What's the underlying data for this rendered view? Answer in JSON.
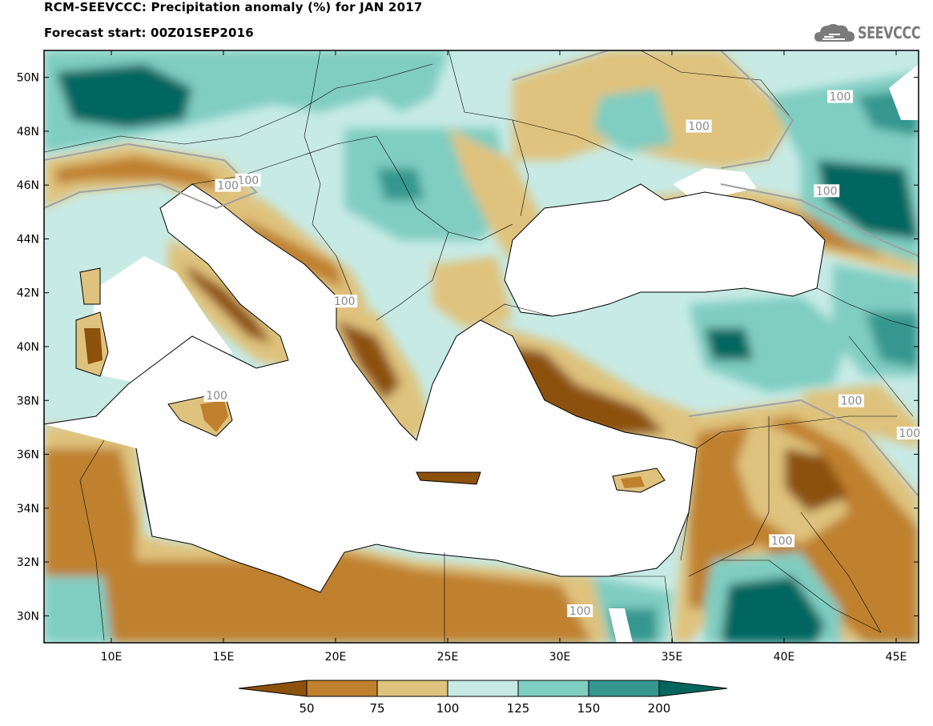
{
  "title_line1": "RCM-SEEVCCC: Precipitation anomaly (%) for JAN 2017",
  "title_line2": "Forecast start: 00Z01SEP2016",
  "logo": {
    "text": "SEEVCCC",
    "icon": "cloud-logo-icon"
  },
  "map": {
    "lon_range": [
      7,
      46
    ],
    "lat_range": [
      29,
      51
    ],
    "lon_ticks": [
      {
        "value": 10,
        "label": "10E"
      },
      {
        "value": 15,
        "label": "15E"
      },
      {
        "value": 20,
        "label": "20E"
      },
      {
        "value": 25,
        "label": "25E"
      },
      {
        "value": 30,
        "label": "30E"
      },
      {
        "value": 35,
        "label": "35E"
      },
      {
        "value": 40,
        "label": "40E"
      },
      {
        "value": 45,
        "label": "45E"
      }
    ],
    "lat_ticks": [
      {
        "value": 30,
        "label": "30N"
      },
      {
        "value": 32,
        "label": "32N"
      },
      {
        "value": 34,
        "label": "34N"
      },
      {
        "value": 36,
        "label": "36N"
      },
      {
        "value": 38,
        "label": "38N"
      },
      {
        "value": 40,
        "label": "40N"
      },
      {
        "value": 42,
        "label": "42N"
      },
      {
        "value": 44,
        "label": "44N"
      },
      {
        "value": 46,
        "label": "46N"
      },
      {
        "value": 48,
        "label": "48N"
      },
      {
        "value": 50,
        "label": "50N"
      }
    ],
    "contour_labels": [
      {
        "text": "100",
        "lon": 36.2,
        "lat": 48.1
      },
      {
        "text": "100",
        "lon": 16.1,
        "lat": 46.1
      },
      {
        "text": "100",
        "lon": 15.2,
        "lat": 45.9
      },
      {
        "text": "100",
        "lon": 42.5,
        "lat": 49.2
      },
      {
        "text": "100",
        "lon": 41.9,
        "lat": 45.7
      },
      {
        "text": "100",
        "lon": 20.4,
        "lat": 41.6
      },
      {
        "text": "100",
        "lon": 14.7,
        "lat": 38.1
      },
      {
        "text": "100",
        "lon": 43.0,
        "lat": 37.9
      },
      {
        "text": "100",
        "lon": 45.6,
        "lat": 36.7
      },
      {
        "text": "100",
        "lon": 39.9,
        "lat": 32.7
      },
      {
        "text": "100",
        "lon": 30.9,
        "lat": 30.1
      }
    ]
  },
  "colors": {
    "lt50": "#8c510a",
    "c50_75": "#bf812d",
    "c75_100": "#dfc27d",
    "c100_125": "#c7eae5",
    "c125_150": "#80cdc1",
    "c150_200": "#35978f",
    "gt200": "#01665e",
    "sea": "#ffffff",
    "contour": "#a0a0a0"
  },
  "colorbar": {
    "labels": [
      "50",
      "75",
      "100",
      "125",
      "150",
      "200"
    ]
  }
}
